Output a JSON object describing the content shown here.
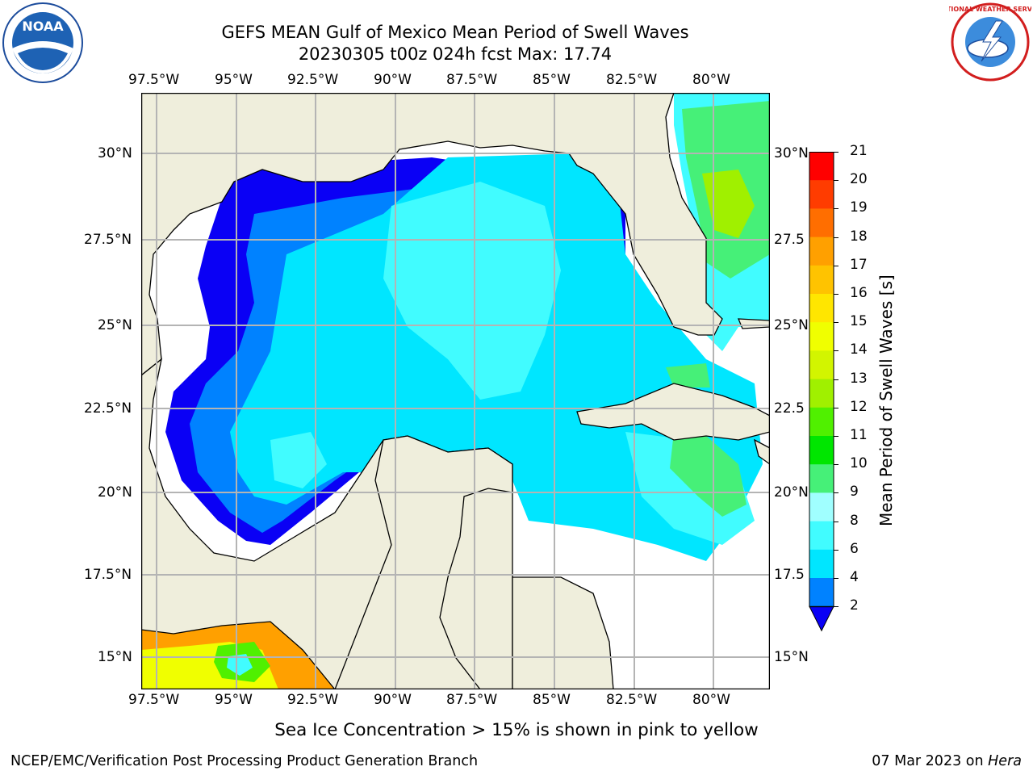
{
  "title": {
    "line1": "GEFS MEAN Gulf of Mexico Mean Period of Swell Waves",
    "line2": "20230305 t00z 024h fcst   Max: 17.74"
  },
  "map": {
    "lon_ticks": [
      "97.5°W",
      "95°W",
      "92.5°W",
      "90°W",
      "87.5°W",
      "85°W",
      "82.5°W",
      "80°W"
    ],
    "lat_ticks": [
      "30°N",
      "27.5°N",
      "25°N",
      "22.5°N",
      "20°N",
      "17.5°N",
      "15°N"
    ],
    "lat_ticks_right": [
      "30°N",
      "27.5",
      "25°N",
      "22.5",
      "20°N",
      "17.5",
      "15°N"
    ],
    "colors": {
      "land": "#efeedc",
      "coast": "#000000",
      "grid": "#b4b4b4",
      "nodata": "#ffffff"
    }
  },
  "colorbar": {
    "label": "Mean Period of Swell Waves [s]",
    "ticks": [
      "2",
      "4",
      "6",
      "8",
      "9",
      "10",
      "11",
      "12",
      "13",
      "14",
      "15",
      "16",
      "17",
      "18",
      "19",
      "20",
      "21"
    ],
    "colors": [
      "#0a00f5",
      "#0082ff",
      "#00e6ff",
      "#41fcff",
      "#a0ffff",
      "#46f078",
      "#00e600",
      "#50f000",
      "#a0f000",
      "#d2f500",
      "#f0ff00",
      "#ffe600",
      "#ffc300",
      "#ffa000",
      "#ff6e00",
      "#ff3c00",
      "#ff0000"
    ]
  },
  "logos": {
    "noaa_text": "NOAA",
    "nws_text": "NATIONAL WEATHER SERVICE"
  },
  "subtitle": "Sea Ice Concentration > 15% is shown in pink to yellow",
  "footer": {
    "left": "NCEP/EMC/Verification Post Processing Product Generation Branch",
    "right_prefix": "07 Mar 2023 on ",
    "right_host": "Hera"
  }
}
